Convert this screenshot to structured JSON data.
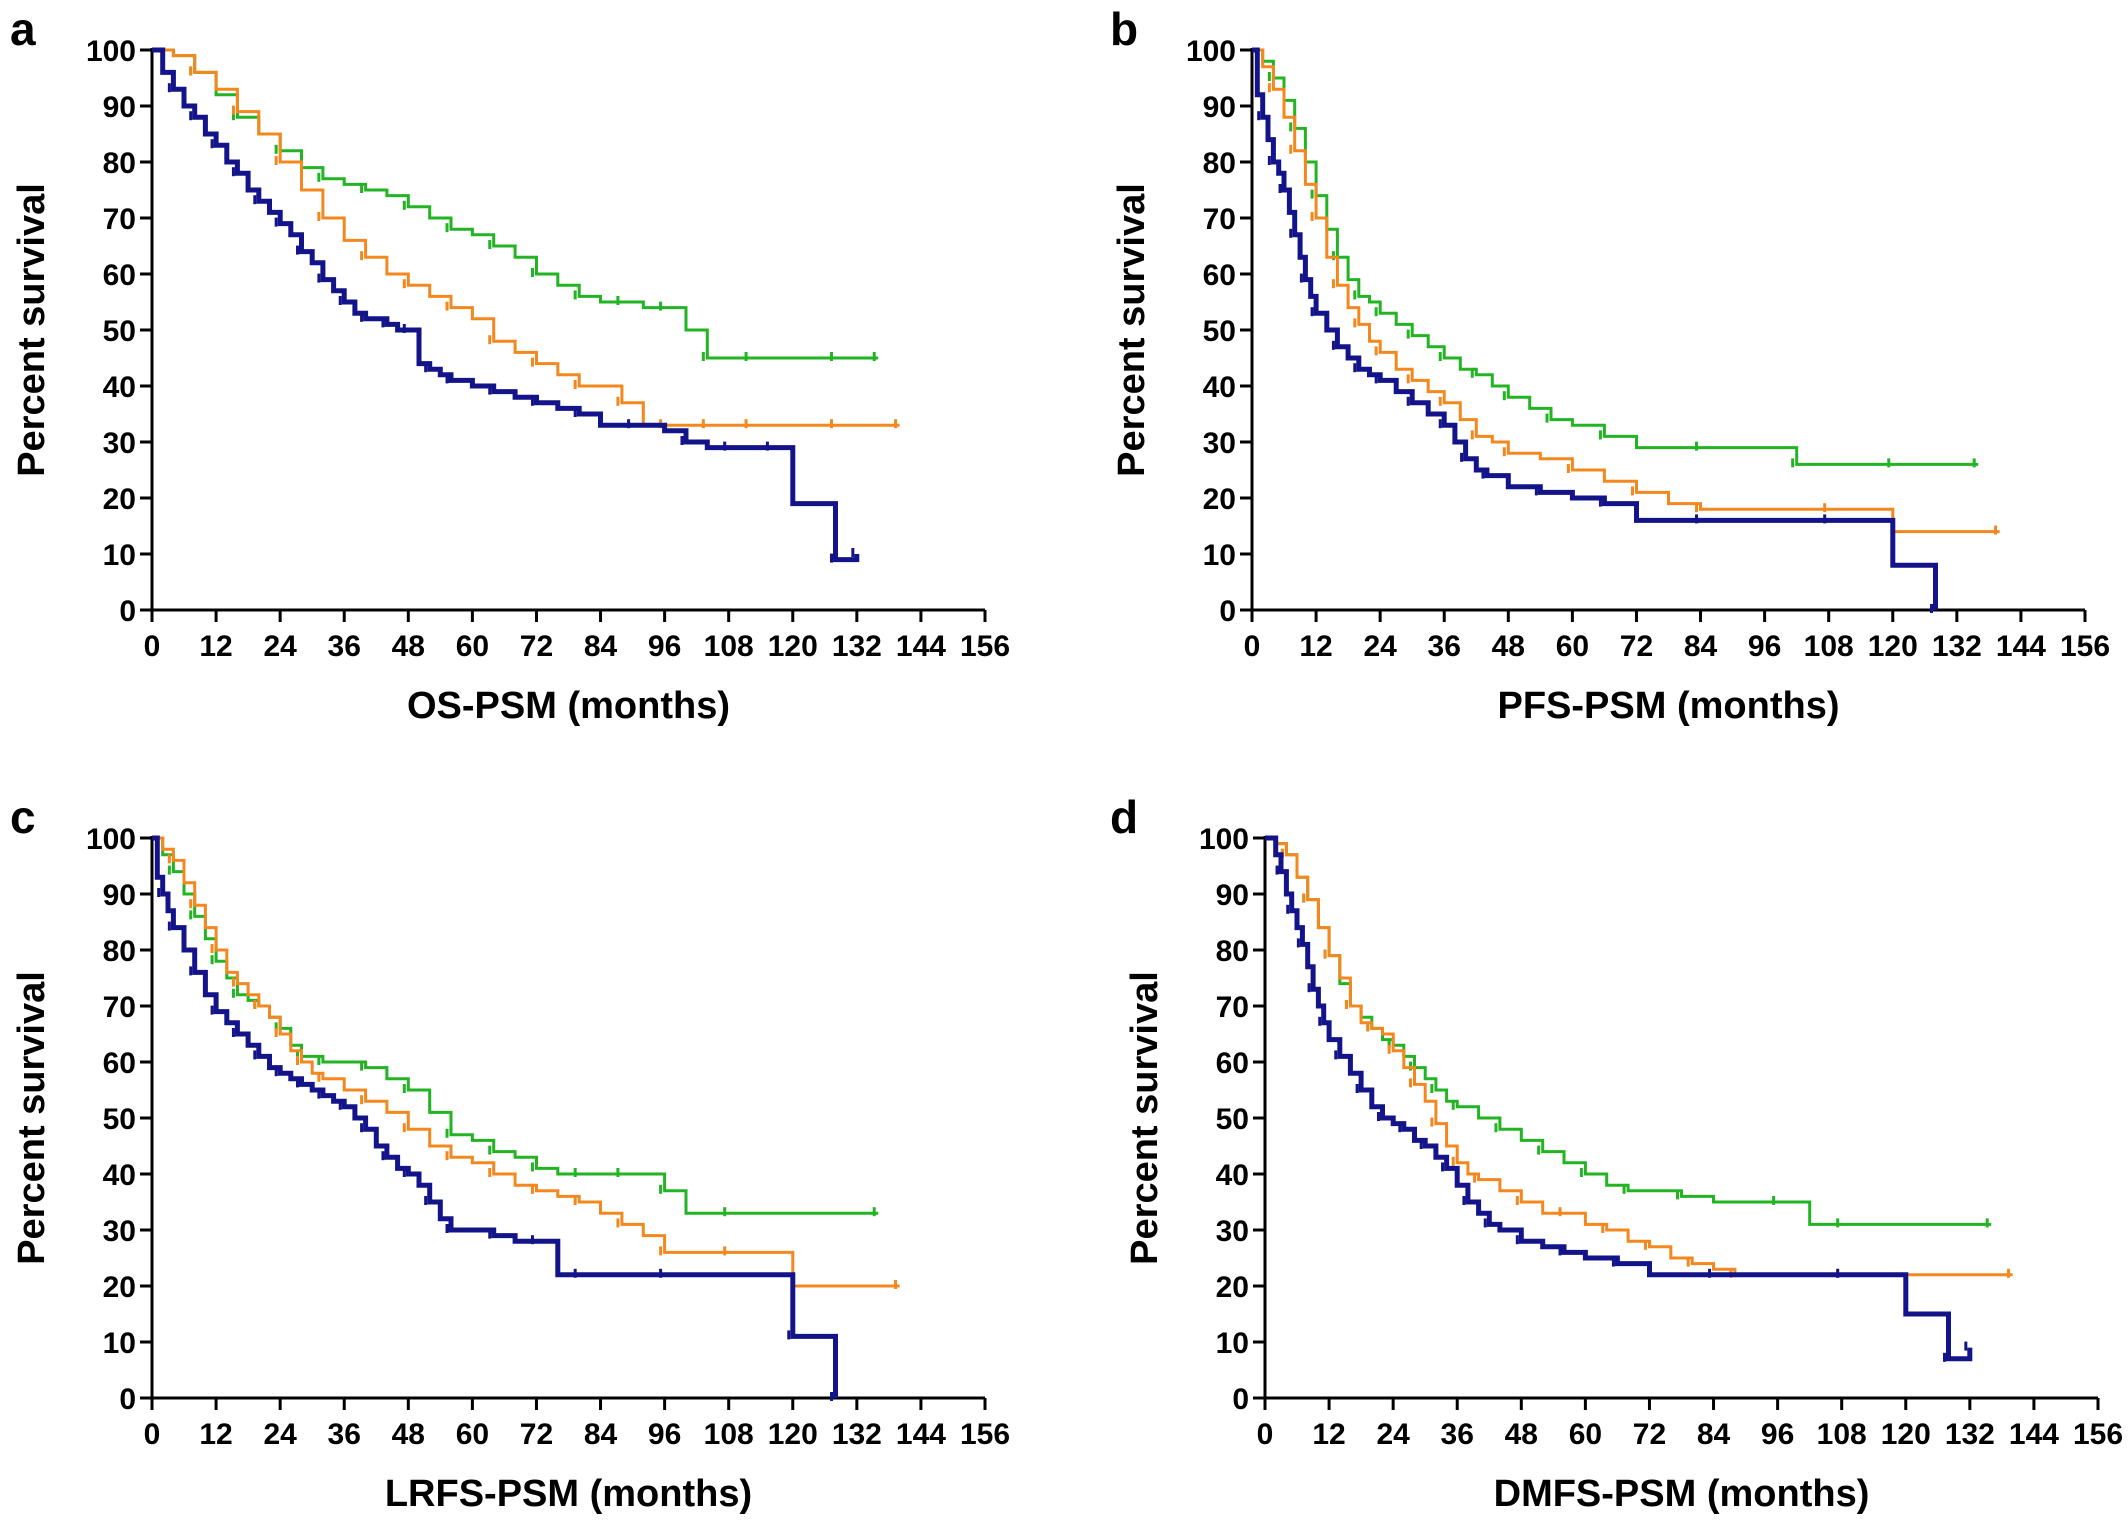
{
  "colors": {
    "navy": "#13138a",
    "orange": "#f4881f",
    "green": "#22b422"
  },
  "chart_data": [
    {
      "panel": "a",
      "type": "line",
      "step": true,
      "xlabel": "OS-PSM (months)",
      "ylabel": "Percent survival",
      "xlim": [
        0,
        156
      ],
      "ylim": [
        0,
        100
      ],
      "xticks": [
        "0",
        "12",
        "24",
        "36",
        "48",
        "60",
        "72",
        "84",
        "96",
        "108",
        "120",
        "132",
        "144",
        "156"
      ],
      "yticks": [
        "0",
        "10",
        "20",
        "30",
        "40",
        "50",
        "60",
        "70",
        "80",
        "90",
        "100"
      ],
      "grid": false,
      "series": [
        {
          "color": "navy",
          "width": 5,
          "x": [
            0,
            2,
            4,
            6,
            8,
            10,
            12,
            14,
            16,
            18,
            20,
            22,
            24,
            26,
            28,
            30,
            32,
            34,
            36,
            38,
            40,
            42,
            44,
            46,
            48,
            50,
            52,
            54,
            56,
            60,
            64,
            68,
            72,
            76,
            80,
            84,
            90,
            96,
            100,
            104,
            108,
            112,
            116,
            120,
            128,
            132
          ],
          "y": [
            100,
            96,
            93,
            90,
            88,
            85,
            83,
            80,
            78,
            75,
            73,
            71,
            69,
            67,
            64,
            62,
            59,
            57,
            55,
            53,
            52,
            52,
            51,
            50,
            50,
            44,
            43,
            42,
            41,
            40,
            39,
            38,
            37,
            36,
            35,
            33,
            33,
            32,
            30,
            29,
            29,
            29,
            29,
            19,
            9,
            10
          ]
        },
        {
          "color": "orange",
          "width": 3,
          "x": [
            0,
            4,
            8,
            12,
            16,
            20,
            24,
            28,
            32,
            36,
            40,
            44,
            48,
            52,
            56,
            60,
            64,
            68,
            72,
            76,
            80,
            84,
            88,
            92,
            96,
            100,
            104,
            108,
            112,
            120,
            128,
            140
          ],
          "y": [
            100,
            99,
            96,
            93,
            89,
            85,
            80,
            75,
            70,
            66,
            63,
            60,
            58,
            56,
            54,
            52,
            48,
            46,
            44,
            42,
            40,
            40,
            37,
            33,
            33,
            33,
            33,
            33,
            33,
            33,
            33,
            33
          ]
        },
        {
          "color": "green",
          "width": 3,
          "x": [
            0,
            4,
            8,
            12,
            16,
            20,
            24,
            28,
            32,
            36,
            40,
            44,
            48,
            52,
            56,
            60,
            64,
            68,
            72,
            76,
            80,
            84,
            88,
            92,
            96,
            100,
            104,
            108,
            112,
            120,
            128,
            136
          ],
          "y": [
            100,
            99,
            96,
            92,
            88,
            85,
            82,
            79,
            77,
            76,
            75,
            74,
            72,
            70,
            68,
            67,
            65,
            63,
            60,
            58,
            56,
            55,
            55,
            54,
            54,
            50,
            45,
            45,
            45,
            45,
            45,
            45
          ]
        }
      ]
    },
    {
      "panel": "b",
      "type": "line",
      "step": true,
      "xlabel": "PFS-PSM (months)",
      "ylabel": "Percent survival",
      "xlim": [
        0,
        156
      ],
      "ylim": [
        0,
        100
      ],
      "xticks": [
        "0",
        "12",
        "24",
        "36",
        "48",
        "60",
        "72",
        "84",
        "96",
        "108",
        "120",
        "132",
        "144",
        "156"
      ],
      "yticks": [
        "0",
        "10",
        "20",
        "30",
        "40",
        "50",
        "60",
        "70",
        "80",
        "90",
        "100"
      ],
      "grid": false,
      "series": [
        {
          "color": "navy",
          "width": 5,
          "x": [
            0,
            1,
            2,
            3,
            4,
            5,
            6,
            7,
            8,
            9,
            10,
            11,
            12,
            14,
            16,
            18,
            20,
            22,
            24,
            27,
            30,
            33,
            36,
            38,
            40,
            42,
            44,
            48,
            54,
            60,
            66,
            72,
            84,
            96,
            108,
            120,
            128
          ],
          "y": [
            100,
            92,
            88,
            84,
            80,
            78,
            75,
            71,
            67,
            63,
            59,
            56,
            53,
            50,
            47,
            45,
            43,
            42,
            41,
            39,
            37,
            35,
            33,
            30,
            27,
            25,
            24,
            22,
            21,
            20,
            19,
            16,
            16,
            16,
            16,
            8,
            0
          ]
        },
        {
          "color": "orange",
          "width": 3,
          "x": [
            0,
            2,
            4,
            6,
            8,
            10,
            12,
            14,
            16,
            18,
            20,
            22,
            24,
            27,
            30,
            33,
            36,
            39,
            42,
            45,
            48,
            54,
            60,
            66,
            72,
            78,
            84,
            96,
            108,
            120,
            140
          ],
          "y": [
            100,
            97,
            93,
            88,
            82,
            76,
            70,
            63,
            58,
            54,
            51,
            48,
            46,
            43,
            41,
            39,
            37,
            34,
            31,
            30,
            28,
            27,
            25,
            23,
            21,
            19,
            18,
            18,
            18,
            14,
            14
          ]
        },
        {
          "color": "green",
          "width": 3,
          "x": [
            0,
            2,
            4,
            6,
            8,
            10,
            12,
            14,
            16,
            18,
            20,
            22,
            24,
            27,
            30,
            33,
            36,
            39,
            42,
            45,
            48,
            52,
            56,
            60,
            66,
            72,
            84,
            96,
            102,
            108,
            120,
            136
          ],
          "y": [
            100,
            98,
            95,
            91,
            86,
            80,
            74,
            68,
            63,
            59,
            56,
            55,
            53,
            51,
            49,
            47,
            45,
            43,
            42,
            40,
            38,
            36,
            34,
            33,
            31,
            29,
            29,
            29,
            26,
            26,
            26,
            26
          ]
        }
      ]
    },
    {
      "panel": "c",
      "type": "line",
      "step": true,
      "xlabel": "LRFS-PSM (months)",
      "ylabel": "Percent survival",
      "xlim": [
        0,
        156
      ],
      "ylim": [
        0,
        100
      ],
      "xticks": [
        "0",
        "12",
        "24",
        "36",
        "48",
        "60",
        "72",
        "84",
        "96",
        "108",
        "120",
        "132",
        "144",
        "156"
      ],
      "yticks": [
        "0",
        "10",
        "20",
        "30",
        "40",
        "50",
        "60",
        "70",
        "80",
        "90",
        "100"
      ],
      "grid": false,
      "series": [
        {
          "color": "navy",
          "width": 5,
          "x": [
            0,
            1,
            2,
            3,
            4,
            6,
            8,
            10,
            12,
            14,
            16,
            18,
            20,
            22,
            24,
            26,
            28,
            30,
            32,
            34,
            36,
            38,
            40,
            42,
            44,
            46,
            48,
            50,
            52,
            54,
            56,
            60,
            64,
            68,
            72,
            76,
            80,
            84,
            96,
            108,
            120,
            128
          ],
          "y": [
            100,
            93,
            90,
            87,
            84,
            80,
            76,
            72,
            69,
            67,
            65,
            63,
            61,
            59,
            58,
            57,
            56,
            55,
            54,
            53,
            52,
            50,
            48,
            45,
            43,
            41,
            40,
            38,
            35,
            32,
            30,
            30,
            29,
            28,
            28,
            22,
            22,
            22,
            22,
            22,
            11,
            0
          ]
        },
        {
          "color": "orange",
          "width": 3,
          "x": [
            0,
            2,
            4,
            6,
            8,
            10,
            12,
            14,
            16,
            18,
            20,
            22,
            24,
            26,
            28,
            30,
            32,
            36,
            40,
            44,
            48,
            52,
            56,
            60,
            64,
            68,
            72,
            76,
            80,
            84,
            88,
            92,
            96,
            100,
            108,
            120,
            140
          ],
          "y": [
            100,
            98,
            96,
            92,
            88,
            84,
            80,
            76,
            74,
            72,
            70,
            68,
            65,
            62,
            60,
            58,
            57,
            55,
            53,
            51,
            48,
            45,
            43,
            42,
            40,
            38,
            37,
            36,
            35,
            33,
            31,
            29,
            26,
            26,
            26,
            20,
            20
          ]
        },
        {
          "color": "green",
          "width": 3,
          "x": [
            0,
            2,
            4,
            6,
            8,
            10,
            12,
            14,
            16,
            18,
            20,
            22,
            24,
            26,
            28,
            30,
            32,
            36,
            40,
            44,
            48,
            52,
            56,
            60,
            64,
            68,
            72,
            76,
            80,
            84,
            88,
            92,
            96,
            100,
            108,
            120,
            136
          ],
          "y": [
            100,
            97,
            94,
            90,
            86,
            82,
            78,
            75,
            72,
            71,
            70,
            68,
            66,
            63,
            61,
            61,
            60,
            60,
            59,
            57,
            55,
            51,
            47,
            46,
            44,
            43,
            41,
            40,
            40,
            40,
            40,
            40,
            37,
            33,
            33,
            33,
            33
          ]
        }
      ]
    },
    {
      "panel": "d",
      "type": "line",
      "step": true,
      "xlabel": "DMFS-PSM (months)",
      "ylabel": "Percent survival",
      "xlim": [
        0,
        156
      ],
      "ylim": [
        0,
        100
      ],
      "xticks": [
        "0",
        "12",
        "24",
        "36",
        "48",
        "60",
        "72",
        "84",
        "96",
        "108",
        "120",
        "132",
        "144",
        "156"
      ],
      "yticks": [
        "0",
        "10",
        "20",
        "30",
        "40",
        "50",
        "60",
        "70",
        "80",
        "90",
        "100"
      ],
      "grid": false,
      "series": [
        {
          "color": "navy",
          "width": 5,
          "x": [
            0,
            2,
            3,
            4,
            5,
            6,
            7,
            8,
            9,
            10,
            11,
            12,
            14,
            16,
            18,
            20,
            22,
            24,
            26,
            28,
            30,
            32,
            34,
            36,
            38,
            40,
            42,
            44,
            48,
            52,
            56,
            60,
            66,
            72,
            84,
            96,
            108,
            120,
            128,
            132
          ],
          "y": [
            100,
            97,
            94,
            90,
            87,
            84,
            81,
            77,
            73,
            70,
            67,
            64,
            61,
            58,
            55,
            52,
            50,
            49,
            48,
            46,
            45,
            43,
            41,
            38,
            35,
            33,
            31,
            30,
            28,
            27,
            26,
            25,
            24,
            22,
            22,
            22,
            22,
            15,
            7,
            9
          ]
        },
        {
          "color": "orange",
          "width": 3,
          "x": [
            0,
            2,
            4,
            6,
            8,
            10,
            12,
            14,
            16,
            18,
            20,
            22,
            24,
            26,
            28,
            30,
            32,
            34,
            36,
            38,
            40,
            44,
            48,
            52,
            56,
            60,
            64,
            68,
            72,
            76,
            80,
            84,
            88,
            96,
            108,
            120,
            140
          ],
          "y": [
            100,
            99,
            97,
            93,
            89,
            84,
            79,
            75,
            70,
            67,
            66,
            65,
            62,
            59,
            56,
            53,
            49,
            45,
            42,
            40,
            39,
            37,
            35,
            33,
            33,
            31,
            30,
            28,
            27,
            25,
            24,
            23,
            22,
            22,
            22,
            22,
            22
          ]
        },
        {
          "color": "green",
          "width": 3,
          "x": [
            0,
            2,
            4,
            6,
            8,
            10,
            12,
            14,
            16,
            18,
            20,
            22,
            24,
            26,
            28,
            30,
            32,
            34,
            36,
            40,
            44,
            48,
            52,
            56,
            60,
            64,
            68,
            72,
            78,
            84,
            96,
            102,
            108,
            120,
            136
          ],
          "y": [
            100,
            99,
            97,
            93,
            89,
            84,
            79,
            74,
            70,
            68,
            66,
            64,
            63,
            61,
            59,
            57,
            55,
            53,
            52,
            50,
            48,
            46,
            44,
            42,
            40,
            38,
            37,
            37,
            36,
            35,
            35,
            31,
            31,
            31,
            31
          ]
        }
      ]
    }
  ]
}
